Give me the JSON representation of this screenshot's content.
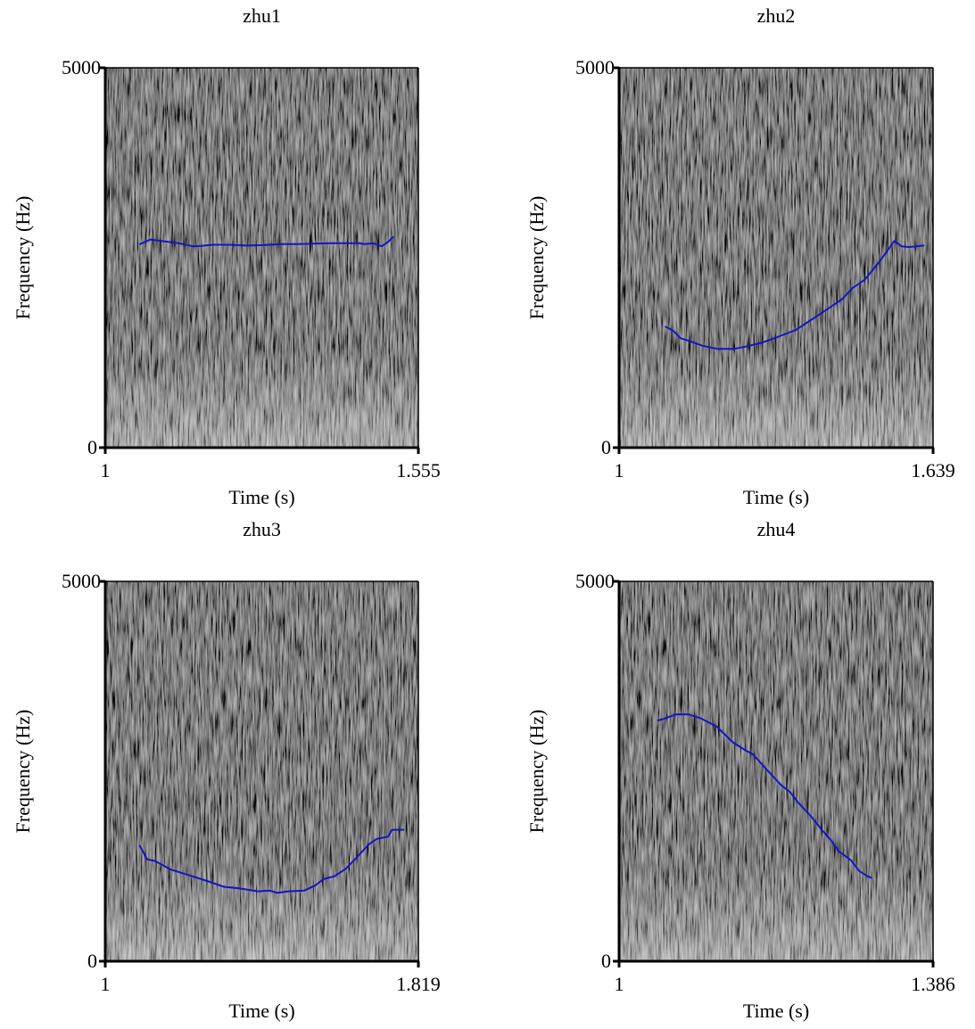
{
  "chart_data": [
    {
      "type": "line",
      "title": "zhu1",
      "xlabel": "Time (s)",
      "ylabel": "Frequency (Hz)",
      "xlim": [
        1,
        1.555
      ],
      "ylim": [
        0,
        5000
      ],
      "x_tick_labels": [
        "1",
        "1.555"
      ],
      "y_tick_labels": [
        "0",
        "5000"
      ],
      "background": "spectrogram",
      "series": [
        {
          "color": "#1414c8",
          "x": [
            1.062,
            1.08,
            1.1,
            1.13,
            1.155,
            1.17,
            1.19,
            1.22,
            1.25,
            1.28,
            1.31,
            1.34,
            1.37,
            1.4,
            1.43,
            1.45,
            1.46,
            1.475,
            1.49,
            1.5,
            1.51
          ],
          "y": [
            2680,
            2740,
            2720,
            2690,
            2650,
            2655,
            2670,
            2670,
            2660,
            2665,
            2680,
            2680,
            2685,
            2690,
            2690,
            2690,
            2680,
            2690,
            2650,
            2700,
            2770
          ]
        }
      ]
    },
    {
      "type": "line",
      "title": "zhu2",
      "xlabel": "Time (s)",
      "ylabel": "Frequency (Hz)",
      "xlim": [
        1,
        1.639
      ],
      "ylim": [
        0,
        5000
      ],
      "x_tick_labels": [
        "1",
        "1.639"
      ],
      "y_tick_labels": [
        "0",
        "5000"
      ],
      "background": "spectrogram",
      "series": [
        {
          "color": "#1414c8",
          "x": [
            1.095,
            1.11,
            1.125,
            1.145,
            1.17,
            1.2,
            1.235,
            1.265,
            1.29,
            1.32,
            1.36,
            1.4,
            1.43,
            1.455,
            1.475,
            1.5,
            1.53,
            1.56,
            1.575,
            1.59,
            1.62
          ],
          "y": [
            1590,
            1540,
            1440,
            1400,
            1340,
            1300,
            1300,
            1340,
            1380,
            1450,
            1550,
            1720,
            1850,
            1960,
            2100,
            2210,
            2450,
            2720,
            2650,
            2640,
            2660
          ]
        }
      ]
    },
    {
      "type": "line",
      "title": "zhu3",
      "xlabel": "Time (s)",
      "ylabel": "Frequency (Hz)",
      "xlim": [
        1,
        1.819
      ],
      "ylim": [
        0,
        5000
      ],
      "x_tick_labels": [
        "1",
        "1.819"
      ],
      "y_tick_labels": [
        "0",
        "5000"
      ],
      "background": "spectrogram",
      "series": [
        {
          "color": "#1414c8",
          "x": [
            1.09,
            1.11,
            1.13,
            1.17,
            1.22,
            1.27,
            1.31,
            1.35,
            1.4,
            1.43,
            1.45,
            1.48,
            1.52,
            1.55,
            1.57,
            1.6,
            1.63,
            1.66,
            1.69,
            1.71,
            1.74,
            1.75,
            1.78
          ],
          "y": [
            1520,
            1340,
            1320,
            1210,
            1130,
            1050,
            980,
            960,
            920,
            930,
            900,
            920,
            930,
            1000,
            1080,
            1120,
            1220,
            1380,
            1540,
            1610,
            1640,
            1730,
            1730
          ]
        }
      ]
    },
    {
      "type": "line",
      "title": "zhu4",
      "xlabel": "Time (s)",
      "ylabel": "Frequency (Hz)",
      "xlim": [
        1,
        1.386
      ],
      "ylim": [
        0,
        5000
      ],
      "x_tick_labels": [
        "1",
        "1.386"
      ],
      "y_tick_labels": [
        "0",
        "5000"
      ],
      "background": "spectrogram",
      "series": [
        {
          "color": "#1414c8",
          "x": [
            1.048,
            1.055,
            1.07,
            1.085,
            1.1,
            1.12,
            1.14,
            1.155,
            1.165,
            1.18,
            1.2,
            1.21,
            1.22,
            1.235,
            1.25,
            1.26,
            1.27,
            1.285,
            1.295,
            1.305,
            1.31
          ],
          "y": [
            3170,
            3190,
            3250,
            3250,
            3200,
            3090,
            2880,
            2780,
            2720,
            2540,
            2310,
            2230,
            2090,
            1920,
            1720,
            1600,
            1450,
            1330,
            1190,
            1120,
            1100
          ]
        }
      ]
    }
  ]
}
